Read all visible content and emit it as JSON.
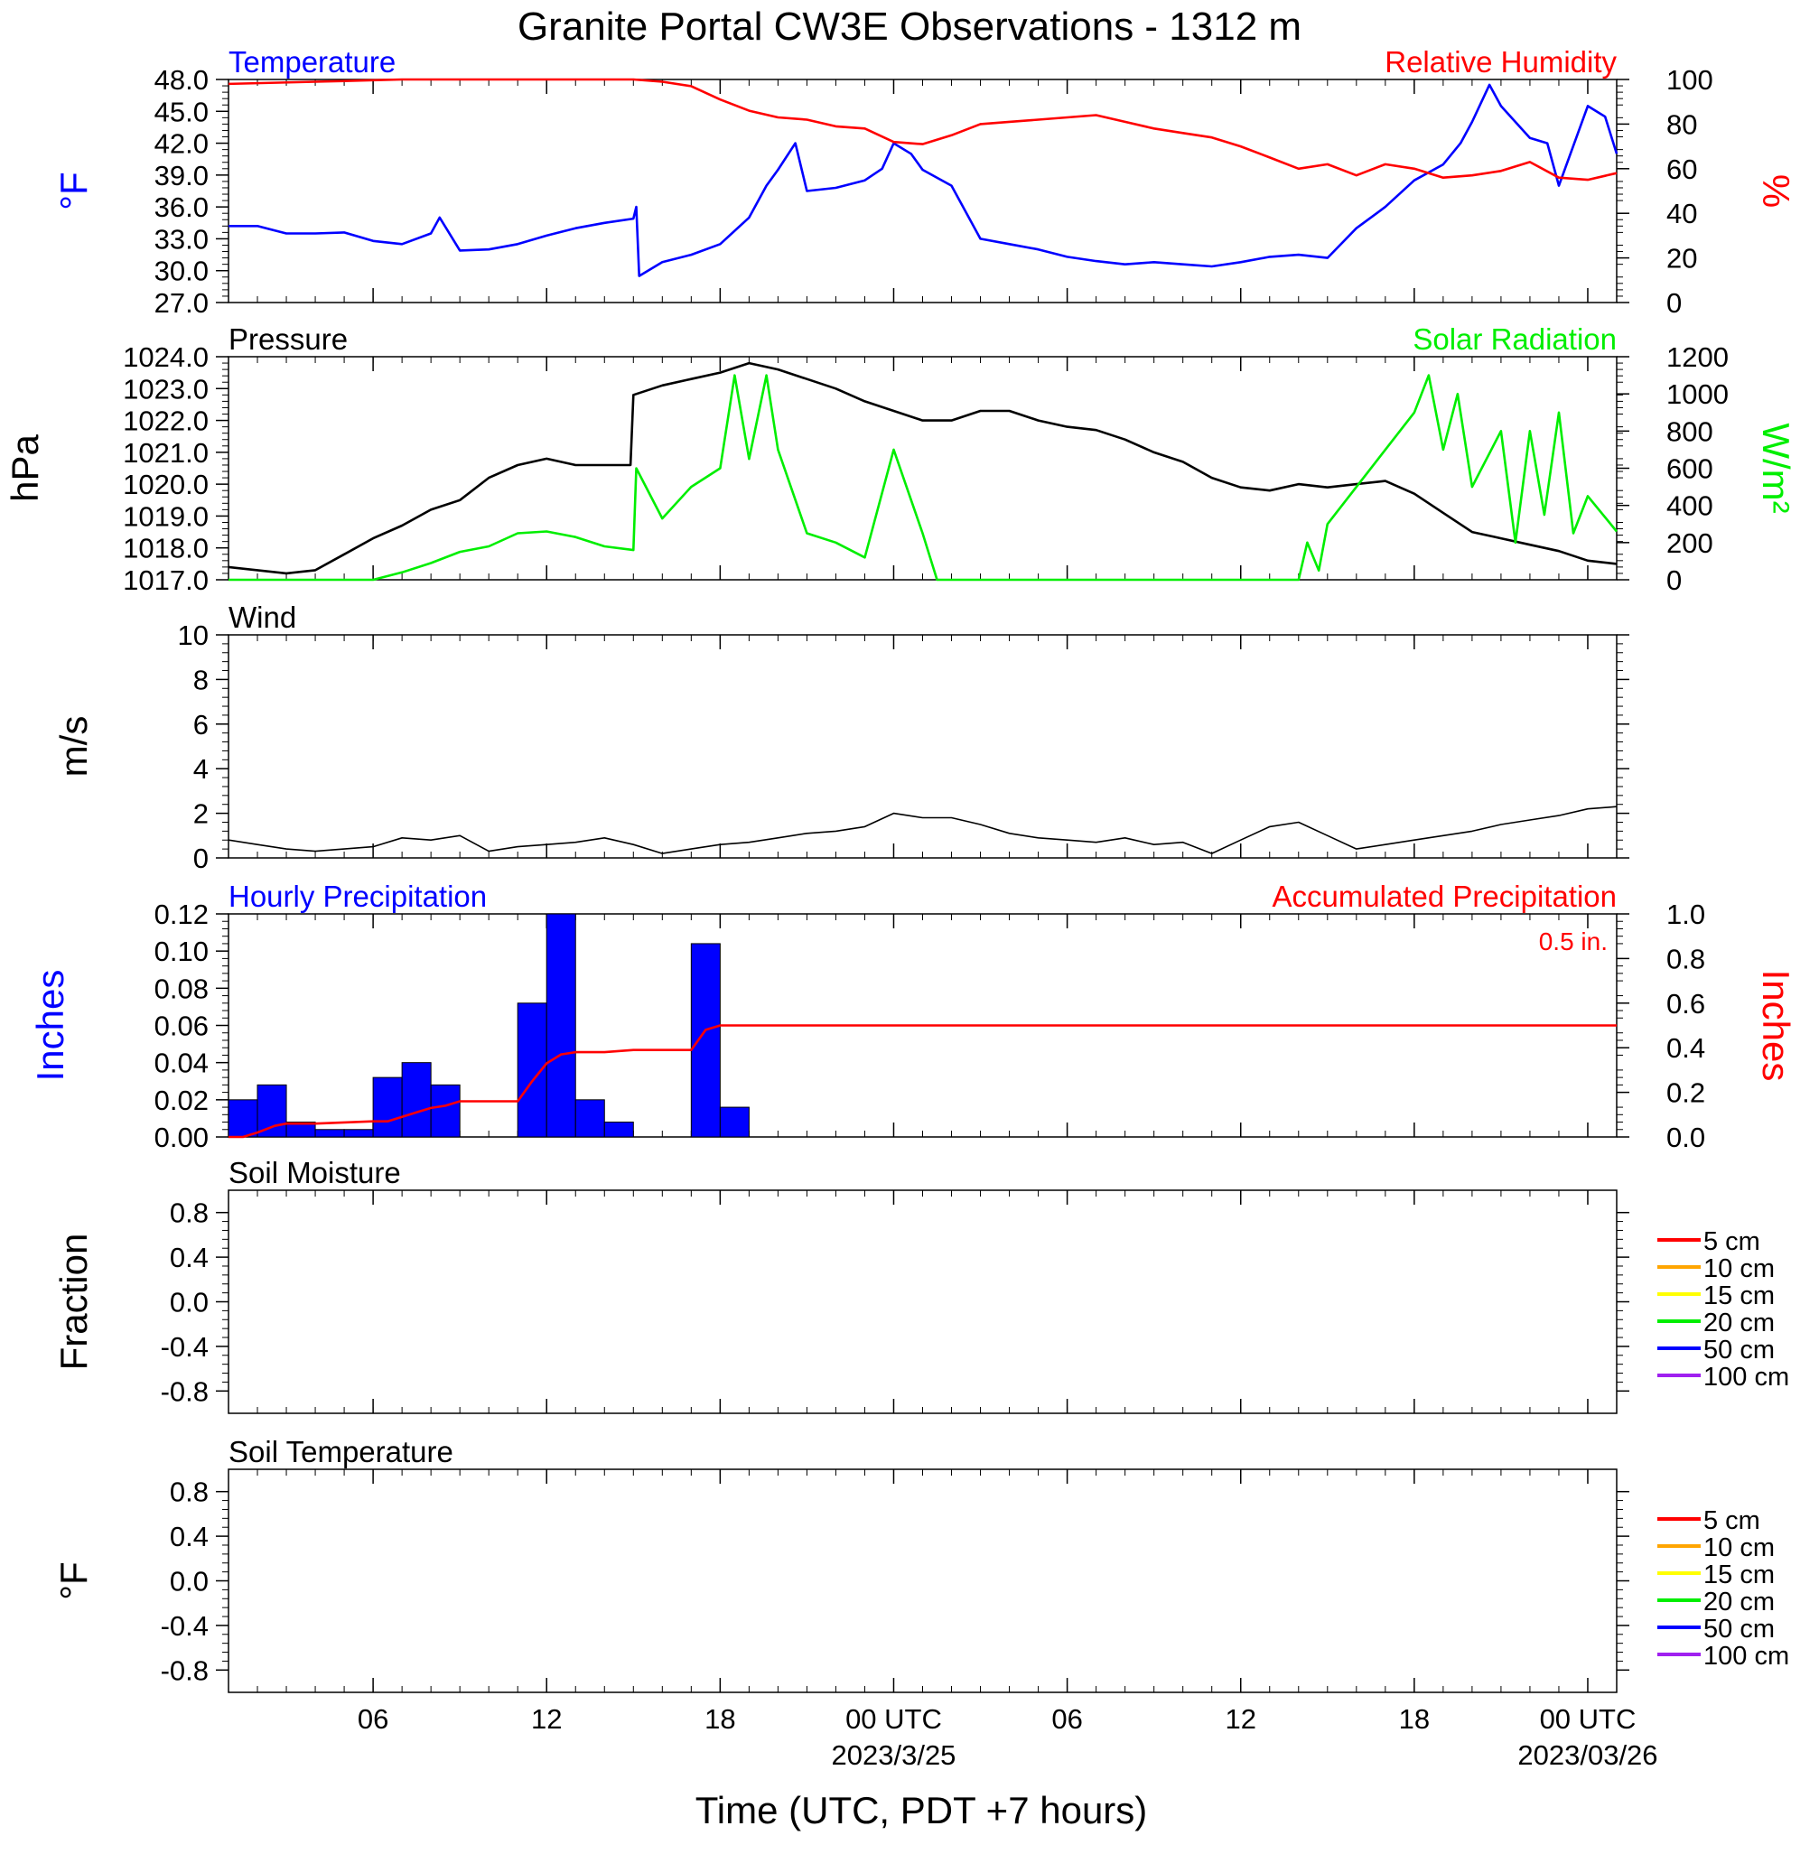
{
  "title": "Granite Portal CW3E Observations - 1312 m",
  "xaxis": {
    "label": "Time (UTC, PDT +7 hours)",
    "range_hours": [
      0,
      48
    ],
    "ticks": [
      {
        "h": 5,
        "label": "06",
        "date": ""
      },
      {
        "h": 11,
        "label": "12",
        "date": ""
      },
      {
        "h": 17,
        "label": "18",
        "date": ""
      },
      {
        "h": 23,
        "label": "00 UTC",
        "date": "2023/3/25"
      },
      {
        "h": 29,
        "label": "06",
        "date": ""
      },
      {
        "h": 35,
        "label": "12",
        "date": ""
      },
      {
        "h": 41,
        "label": "18",
        "date": ""
      },
      {
        "h": 47,
        "label": "00 UTC",
        "date": "2023/03/26"
      }
    ]
  },
  "colors": {
    "blue": "#0000ff",
    "red": "#ff0000",
    "green": "#00ee00",
    "black": "#000000",
    "orange": "#ffa500",
    "yellow": "#ffff00",
    "purple": "#a020f0"
  },
  "chart_data": [
    {
      "id": "temp_rh",
      "type": "line",
      "title_left": "Temperature",
      "title_right": "Relative Humidity",
      "ylabel_left": "°F",
      "ylabel_right": "%",
      "ylim_left": [
        27,
        48
      ],
      "yticks_left": [
        "27.0",
        "30.0",
        "33.0",
        "36.0",
        "39.0",
        "42.0",
        "45.0",
        "48.0"
      ],
      "ylim_right": [
        0,
        100
      ],
      "yticks_right": [
        "0",
        "20",
        "40",
        "60",
        "80",
        "100"
      ],
      "series": [
        {
          "name": "Temperature",
          "color": "blue",
          "axis": "left",
          "x": [
            0,
            1,
            2,
            3,
            4,
            5,
            6,
            7,
            7.3,
            8,
            9,
            10,
            11,
            12,
            13,
            14,
            14.1,
            14.2,
            15,
            16,
            17,
            18,
            18.6,
            19,
            19.6,
            20,
            21,
            22,
            22.6,
            23,
            23.6,
            24,
            25,
            26,
            27,
            28,
            29,
            30,
            31,
            32,
            33,
            34,
            35,
            36,
            37,
            38,
            39,
            40,
            41,
            42,
            42.6,
            43,
            43.6,
            44,
            45,
            45.6,
            46,
            47,
            47.6,
            48
          ],
          "y": [
            34.2,
            34.2,
            33.5,
            33.5,
            33.6,
            32.8,
            32.5,
            33.5,
            35.0,
            31.9,
            32.0,
            32.5,
            33.3,
            34.0,
            34.5,
            34.9,
            36.0,
            29.5,
            30.8,
            31.5,
            32.5,
            35.0,
            38.0,
            39.5,
            42.0,
            37.5,
            37.8,
            38.5,
            39.6,
            42.0,
            41.0,
            39.5,
            38.0,
            33.0,
            32.5,
            32.0,
            31.3,
            30.9,
            30.6,
            30.8,
            30.6,
            30.4,
            30.8,
            31.3,
            31.5,
            31.2,
            34.0,
            36.0,
            38.5,
            40.0,
            42.0,
            44.0,
            47.5,
            45.5,
            42.5,
            42.0,
            38.0,
            45.5,
            44.5,
            41.0
          ]
        },
        {
          "name": "Relative Humidity",
          "color": "red",
          "axis": "right",
          "x": [
            0,
            3,
            6,
            9,
            12,
            13,
            14,
            15,
            16,
            17,
            18,
            19,
            20,
            21,
            22,
            23,
            24,
            25,
            26,
            27,
            28,
            29,
            30,
            31,
            32,
            33,
            34,
            35,
            36,
            37,
            38,
            39,
            40,
            41,
            42,
            43,
            44,
            45,
            46,
            47,
            48
          ],
          "y": [
            98,
            99,
            100,
            100,
            100,
            100,
            100,
            99,
            97,
            91,
            86,
            83,
            82,
            79,
            78,
            72,
            71,
            75,
            80,
            81,
            82,
            83,
            84,
            81,
            78,
            76,
            74,
            70,
            65,
            60,
            62,
            57,
            62,
            60,
            56,
            57,
            59,
            63,
            56,
            55,
            58
          ]
        }
      ]
    },
    {
      "id": "press_solar",
      "type": "line",
      "title_left": "Pressure",
      "title_right": "Solar Radiation",
      "ylabel_left": "hPa",
      "ylabel_right": "W/m²",
      "ylim_left": [
        1017,
        1024
      ],
      "yticks_left": [
        "1017.0",
        "1018.0",
        "1019.0",
        "1020.0",
        "1021.0",
        "1022.0",
        "1023.0",
        "1024.0"
      ],
      "ylim_right": [
        0,
        1200
      ],
      "yticks_right": [
        "0",
        "200",
        "400",
        "600",
        "800",
        "1000",
        "1200"
      ],
      "series": [
        {
          "name": "Pressure",
          "color": "black",
          "axis": "left",
          "x": [
            0,
            1,
            2,
            3,
            4,
            5,
            6,
            7,
            8,
            9,
            10,
            11,
            12,
            13,
            13.9,
            14,
            15,
            16,
            17,
            18,
            19,
            20,
            21,
            22,
            23,
            24,
            25,
            26,
            27,
            28,
            29,
            30,
            31,
            32,
            33,
            34,
            35,
            36,
            37,
            38,
            39,
            40,
            41,
            42,
            43,
            44,
            45,
            46,
            47,
            48
          ],
          "y": [
            1017.4,
            1017.3,
            1017.2,
            1017.3,
            1017.8,
            1018.3,
            1018.7,
            1019.2,
            1019.5,
            1020.2,
            1020.6,
            1020.8,
            1020.6,
            1020.6,
            1020.6,
            1022.8,
            1023.1,
            1023.3,
            1023.5,
            1023.8,
            1023.6,
            1023.3,
            1023.0,
            1022.6,
            1022.3,
            1022.0,
            1022.0,
            1022.3,
            1022.3,
            1022.0,
            1021.8,
            1021.7,
            1021.4,
            1021.0,
            1020.7,
            1020.2,
            1019.9,
            1019.8,
            1020.0,
            1019.9,
            1020.0,
            1020.1,
            1019.7,
            1019.1,
            1018.5,
            1018.3,
            1018.1,
            1017.9,
            1017.6,
            1017.5
          ]
        },
        {
          "name": "Solar Radiation",
          "color": "green",
          "axis": "right",
          "x": [
            0,
            5,
            6,
            7,
            8,
            9,
            10,
            11,
            12,
            13,
            14,
            14.1,
            15,
            16,
            17,
            17.5,
            18,
            18.6,
            19,
            20,
            21,
            22,
            23,
            24,
            24.5,
            26,
            30,
            35,
            37,
            37.3,
            37.7,
            38,
            41,
            41.5,
            42,
            42.5,
            43,
            44,
            44.5,
            45,
            45.5,
            46,
            46.5,
            47,
            48
          ],
          "y": [
            0,
            0,
            40,
            90,
            150,
            180,
            250,
            260,
            230,
            180,
            160,
            600,
            330,
            500,
            600,
            1100,
            650,
            1100,
            700,
            250,
            200,
            120,
            700,
            250,
            0,
            0,
            0,
            0,
            0,
            200,
            50,
            300,
            900,
            1100,
            700,
            1000,
            500,
            800,
            200,
            800,
            350,
            900,
            250,
            450,
            260
          ]
        }
      ]
    },
    {
      "id": "wind",
      "type": "line",
      "title_left": "Wind",
      "ylabel_left": "m/s",
      "ylim_left": [
        0,
        10
      ],
      "yticks_left": [
        "0",
        "2",
        "4",
        "6",
        "8",
        "10"
      ],
      "series": [
        {
          "name": "Wind speed",
          "color": "black",
          "axis": "left",
          "x": [
            0,
            1,
            2,
            3,
            4,
            5,
            6,
            7,
            8,
            9,
            10,
            11,
            12,
            13,
            14,
            15,
            16,
            17,
            18,
            19,
            20,
            21,
            22,
            23,
            24,
            25,
            26,
            27,
            28,
            29,
            30,
            31,
            32,
            33,
            34,
            35,
            36,
            37,
            38,
            39,
            40,
            41,
            42,
            43,
            44,
            45,
            46,
            47,
            48
          ],
          "y": [
            0.8,
            0.6,
            0.4,
            0.3,
            0.4,
            0.5,
            0.9,
            0.8,
            1.0,
            0.3,
            0.5,
            0.6,
            0.7,
            0.9,
            0.6,
            0.2,
            0.4,
            0.6,
            0.7,
            0.9,
            1.1,
            1.2,
            1.4,
            2.0,
            1.8,
            1.8,
            1.5,
            1.1,
            0.9,
            0.8,
            0.7,
            0.9,
            0.6,
            0.7,
            0.2,
            0.8,
            1.4,
            1.6,
            1.0,
            0.4,
            0.6,
            0.8,
            1.0,
            1.2,
            1.5,
            1.7,
            1.9,
            2.2,
            2.3
          ]
        }
      ]
    },
    {
      "id": "precip",
      "type": "bar",
      "title_left": "Hourly Precipitation",
      "title_right": "Accumulated Precipitation",
      "annotation": "0.5 in.",
      "ylabel_left": "Inches",
      "ylabel_right": "Inches",
      "ylim_left": [
        0,
        0.12
      ],
      "yticks_left": [
        "0.00",
        "0.02",
        "0.04",
        "0.06",
        "0.08",
        "0.10",
        "0.12"
      ],
      "ylim_right": [
        0,
        1.0
      ],
      "yticks_right": [
        "0.0",
        "0.2",
        "0.4",
        "0.6",
        "0.8",
        "1.0"
      ],
      "bars": {
        "name": "Hourly Precipitation",
        "color": "blue",
        "hour_start": [
          0,
          1,
          2,
          3,
          4,
          5,
          6,
          7,
          8,
          9,
          10,
          11,
          12,
          13,
          14,
          15,
          16,
          17
        ],
        "values": [
          0.02,
          0.028,
          0.008,
          0.004,
          0.004,
          0.032,
          0.04,
          0.028,
          0,
          0,
          0.072,
          0.12,
          0.02,
          0.008,
          0,
          0,
          0.104,
          0.016
        ]
      },
      "series": [
        {
          "name": "Accumulated Precipitation",
          "color": "red",
          "axis": "right",
          "x": [
            0,
            0.5,
            1,
            1.6,
            2,
            3,
            4,
            5,
            5.5,
            6,
            6.5,
            7,
            7.5,
            8,
            9,
            9.5,
            10,
            10.5,
            11,
            11.5,
            12,
            13,
            14,
            15,
            15.5,
            16,
            16.5,
            17,
            48
          ],
          "y": [
            0,
            0,
            0.02,
            0.05,
            0.06,
            0.06,
            0.065,
            0.07,
            0.07,
            0.09,
            0.11,
            0.13,
            0.14,
            0.16,
            0.16,
            0.16,
            0.16,
            0.25,
            0.33,
            0.37,
            0.38,
            0.38,
            0.39,
            0.39,
            0.39,
            0.39,
            0.48,
            0.5,
            0.5
          ]
        }
      ]
    },
    {
      "id": "soil_moisture",
      "type": "line",
      "title_left": "Soil Moisture",
      "ylabel_left": "Fraction",
      "ylim_left": [
        -1,
        1
      ],
      "yticks_left": [
        "-0.8",
        "-0.4",
        "0.0",
        "0.4",
        "0.8"
      ],
      "legend": [
        {
          "label": "5 cm",
          "color": "red"
        },
        {
          "label": "10 cm",
          "color": "orange"
        },
        {
          "label": "15 cm",
          "color": "yellow"
        },
        {
          "label": "20 cm",
          "color": "green"
        },
        {
          "label": "50 cm",
          "color": "blue"
        },
        {
          "label": "100 cm",
          "color": "purple"
        }
      ],
      "series": []
    },
    {
      "id": "soil_temp",
      "type": "line",
      "title_left": "Soil Temperature",
      "ylabel_left": "°F",
      "ylim_left": [
        -1,
        1
      ],
      "yticks_left": [
        "-0.8",
        "-0.4",
        "0.0",
        "0.4",
        "0.8"
      ],
      "legend": [
        {
          "label": "5 cm",
          "color": "red"
        },
        {
          "label": "10 cm",
          "color": "orange"
        },
        {
          "label": "15 cm",
          "color": "yellow"
        },
        {
          "label": "20 cm",
          "color": "green"
        },
        {
          "label": "50 cm",
          "color": "blue"
        },
        {
          "label": "100 cm",
          "color": "purple"
        }
      ],
      "series": []
    }
  ]
}
